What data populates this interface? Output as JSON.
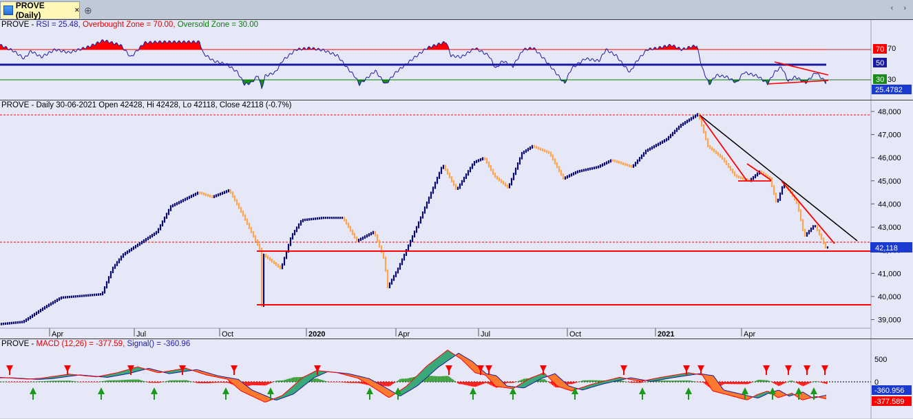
{
  "tab": {
    "label": "PROVE (Daily)",
    "close": "×",
    "new_tab": "⊕",
    "nav": "‹ ›"
  },
  "rsi_pane": {
    "prefix": "PROVE - ",
    "rsi_label": "RSI = 25.48, ",
    "overbought_label": "Overbought Zone = 70.00, ",
    "oversold_label": "Oversold Zone = 30.00",
    "axis_ticks": [
      "70",
      "30"
    ],
    "marker_70": "70",
    "marker_50": "50",
    "marker_30": "30",
    "current_value": "25.4782",
    "colors": {
      "rsi": "#1a1aa0",
      "overbought": "#ff0000",
      "oversold": "#008000"
    }
  },
  "price_pane": {
    "title": "PROVE - Daily 30-06-2021 Open 42428, Hi 42428, Lo 42118, Close 42118 (-0.7%)",
    "axis_ticks": [
      "48,000",
      "47,000",
      "46,000",
      "45,000",
      "44,000",
      "43,000",
      "42,000",
      "41,000",
      "40,000",
      "39,000"
    ],
    "last_price": "42,118",
    "x_labels": [
      {
        "text": "Apr",
        "bold": false
      },
      {
        "text": "Jul",
        "bold": false
      },
      {
        "text": "Oct",
        "bold": false
      },
      {
        "text": "2020",
        "bold": true
      },
      {
        "text": "Apr",
        "bold": false
      },
      {
        "text": "Jul",
        "bold": false
      },
      {
        "text": "Oct",
        "bold": false
      },
      {
        "text": "2021",
        "bold": true
      },
      {
        "text": "Apr",
        "bold": false
      }
    ]
  },
  "macd_pane": {
    "prefix": "PROVE - ",
    "macd_label": "MACD (12,26) = -377.59, ",
    "signal_label": "Signal() = -360.96",
    "axis_ticks": [
      "500",
      "0"
    ],
    "signal_value": "-360.956",
    "macd_value": "-377.589",
    "colors": {
      "macd": "#ff0000",
      "signal": "#1a1aa0"
    }
  }
}
